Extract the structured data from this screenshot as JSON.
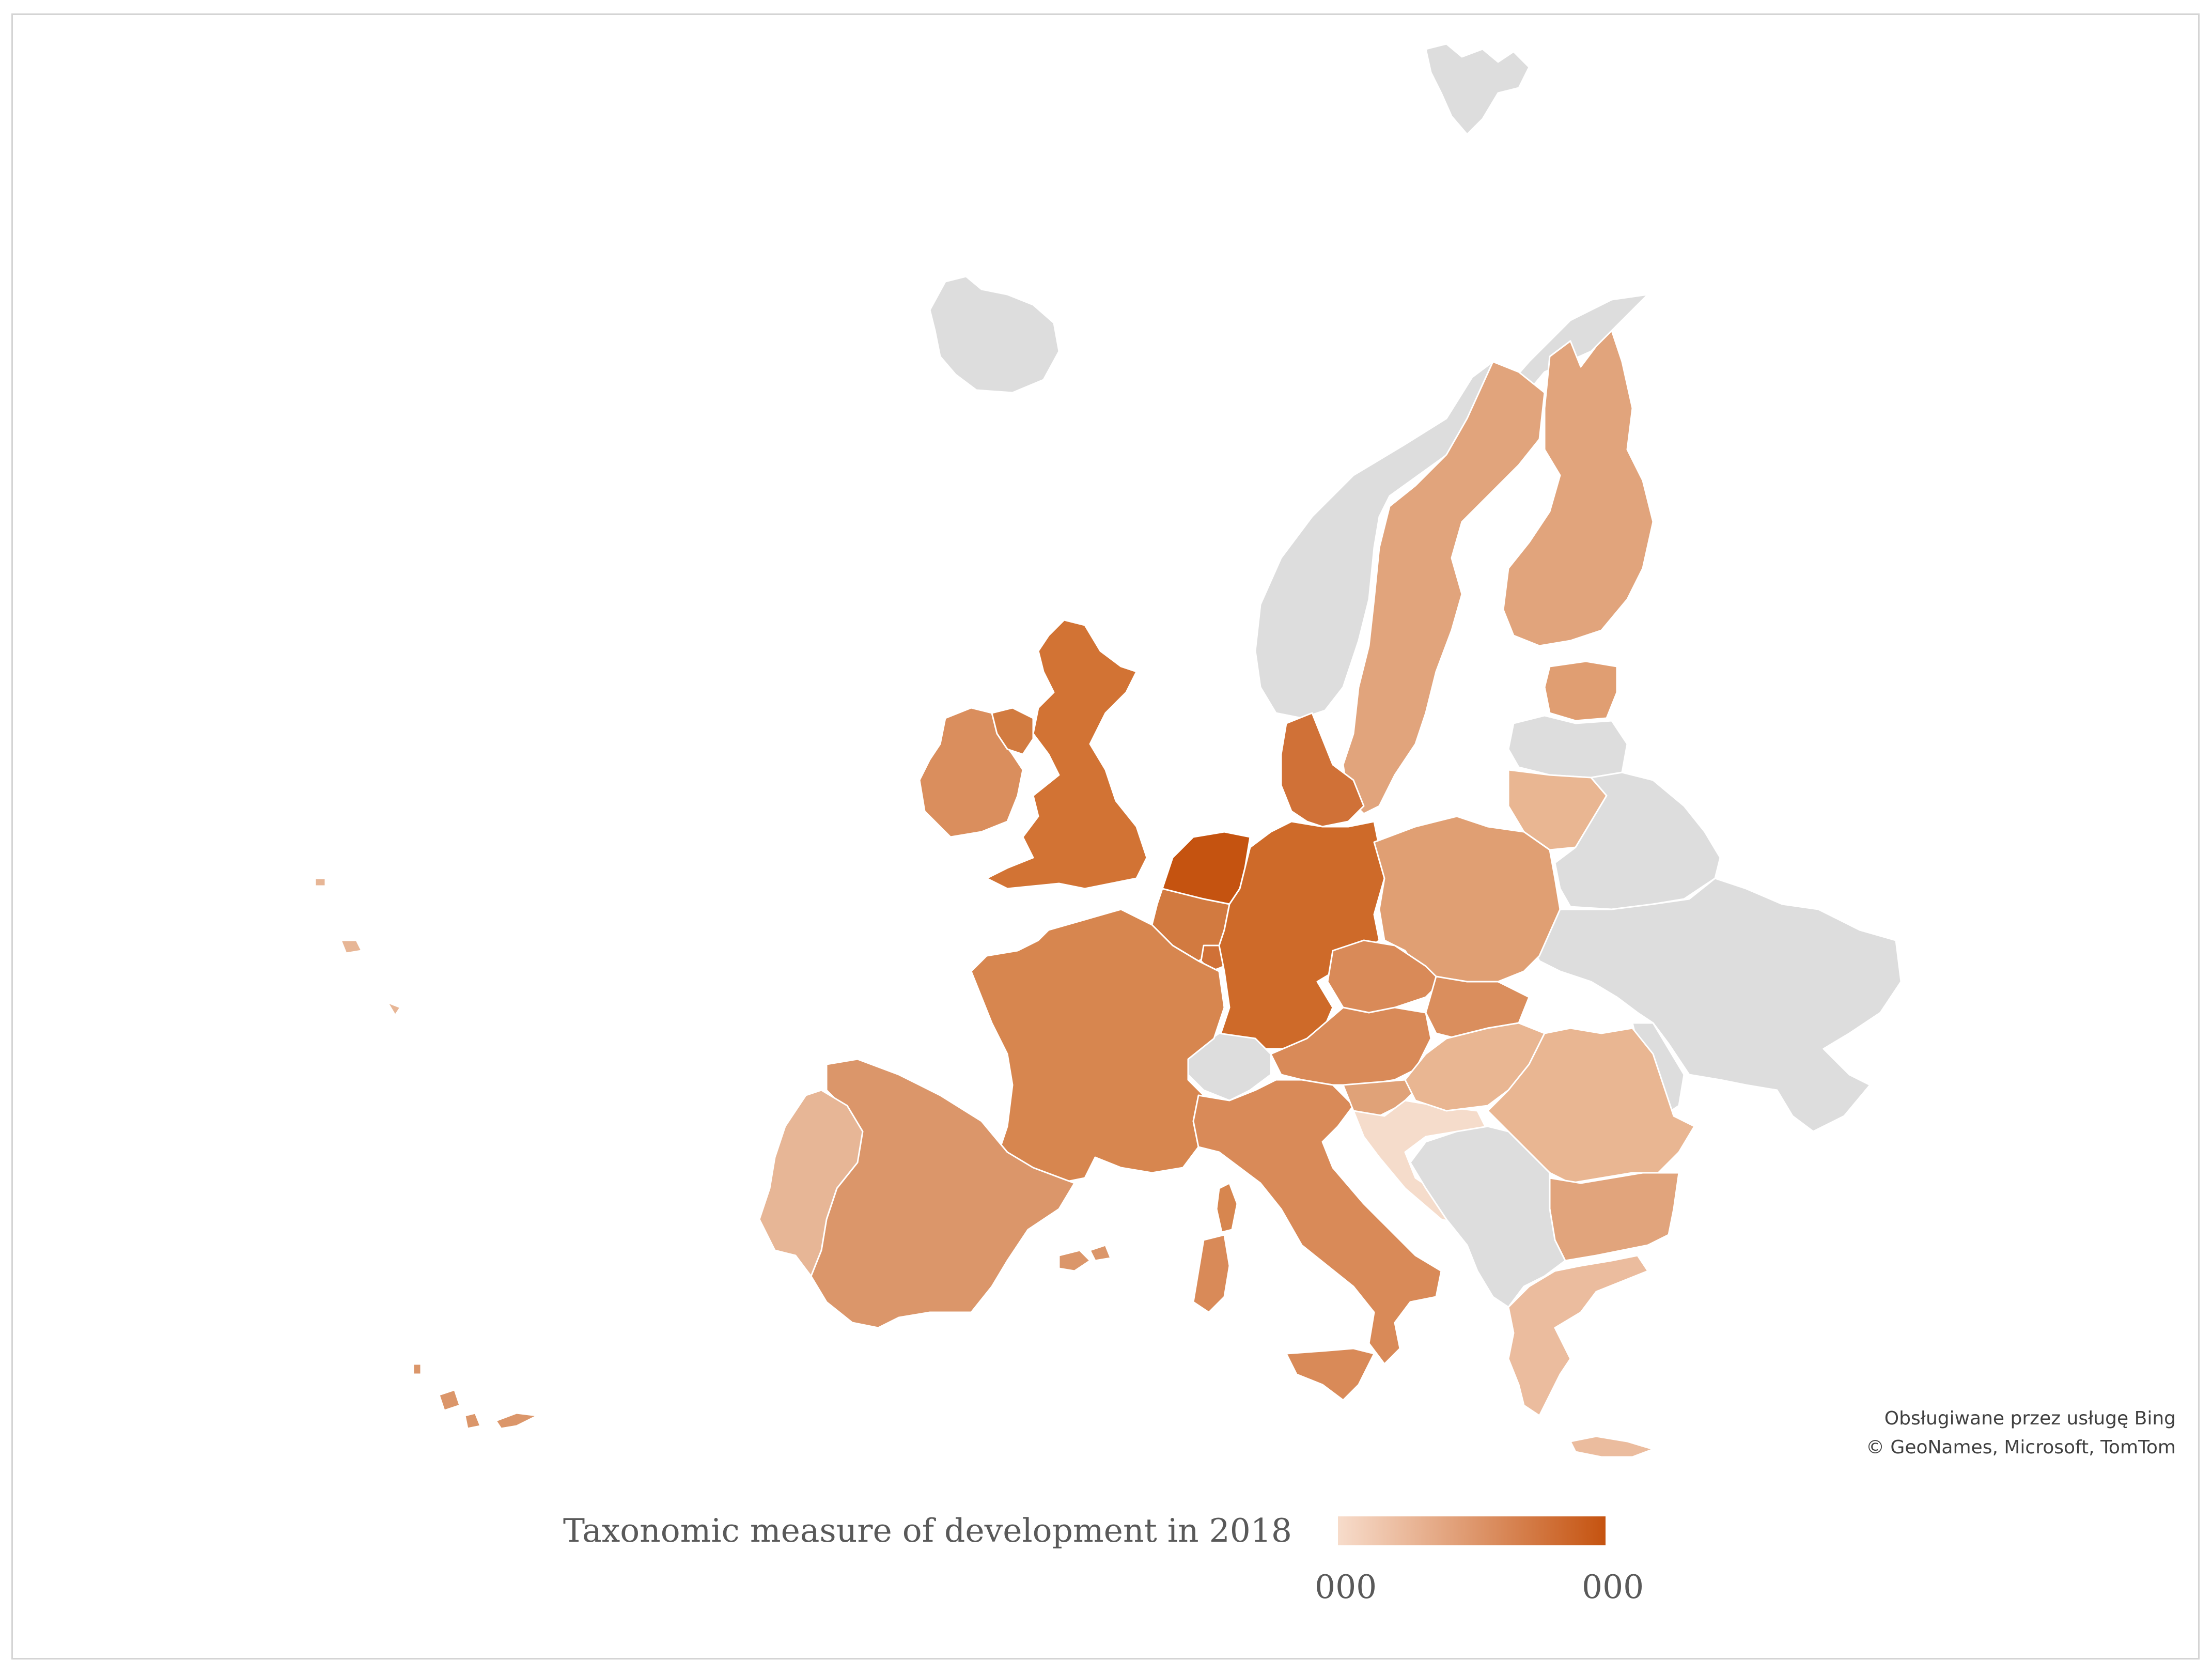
{
  "legend": {
    "title": "Taxonomic measure of development in 2018",
    "min_label": "000",
    "max_label": "000",
    "color_low": "#f7dccb",
    "color_high": "#c55310"
  },
  "attribution": {
    "line1": "Obsługiwane przez usługę Bing",
    "line2": "© GeoNames, Microsoft, TomTom"
  },
  "colors": {
    "no_data": "#dddddd",
    "border": "#ffffff",
    "frame": "#d4d4d4"
  },
  "regions": [
    {
      "name": "Svalbard",
      "color": "#dddddd"
    },
    {
      "name": "Iceland",
      "color": "#dddddd"
    },
    {
      "name": "Norway",
      "color": "#dddddd"
    },
    {
      "name": "Sweden",
      "color": "#e1a47c"
    },
    {
      "name": "Finland",
      "color": "#e1a47c"
    },
    {
      "name": "Estonia",
      "color": "#e09e72"
    },
    {
      "name": "Latvia",
      "color": "#dddddd"
    },
    {
      "name": "Lithuania",
      "color": "#e9b692"
    },
    {
      "name": "Belarus",
      "color": "#dddddd"
    },
    {
      "name": "Ukraine",
      "color": "#dddddd"
    },
    {
      "name": "Moldova",
      "color": "#dddddd"
    },
    {
      "name": "Ireland",
      "color": "#da8e5d"
    },
    {
      "name": "Northern Ireland",
      "color": "#d27b40"
    },
    {
      "name": "United Kingdom",
      "color": "#d27334"
    },
    {
      "name": "Denmark",
      "color": "#d07137"
    },
    {
      "name": "Netherlands",
      "color": "#c55310"
    },
    {
      "name": "Belgium",
      "color": "#d27a40"
    },
    {
      "name": "Luxembourg",
      "color": "#d07137"
    },
    {
      "name": "Germany",
      "color": "#ce6a29"
    },
    {
      "name": "Poland",
      "color": "#e09f73"
    },
    {
      "name": "Czechia",
      "color": "#d98a58"
    },
    {
      "name": "Slovakia",
      "color": "#da8e5d"
    },
    {
      "name": "Austria",
      "color": "#d98a58"
    },
    {
      "name": "Switzerland",
      "color": "#dddddd"
    },
    {
      "name": "France",
      "color": "#d7864f"
    },
    {
      "name": "Corsica",
      "color": "#d7864f"
    },
    {
      "name": "Spain",
      "color": "#db966a"
    },
    {
      "name": "Balearic Islands",
      "color": "#db966a"
    },
    {
      "name": "Canary Islands",
      "color": "#db966a"
    },
    {
      "name": "Portugal",
      "color": "#e7b696"
    },
    {
      "name": "Azores",
      "color": "#e7b696"
    },
    {
      "name": "Italy",
      "color": "#d98a58"
    },
    {
      "name": "Sardinia",
      "color": "#d98a58"
    },
    {
      "name": "Sicily",
      "color": "#d98a58"
    },
    {
      "name": "Slovenia",
      "color": "#e0a278"
    },
    {
      "name": "Croatia",
      "color": "#f5dccb"
    },
    {
      "name": "Hungary",
      "color": "#e9b692"
    },
    {
      "name": "Romania",
      "color": "#e9b692"
    },
    {
      "name": "Bulgaria",
      "color": "#e1a47c"
    },
    {
      "name": "Western Balkans",
      "color": "#dddddd"
    },
    {
      "name": "Greece",
      "color": "#ebbc9e"
    },
    {
      "name": "Crete",
      "color": "#ebbc9e"
    }
  ]
}
